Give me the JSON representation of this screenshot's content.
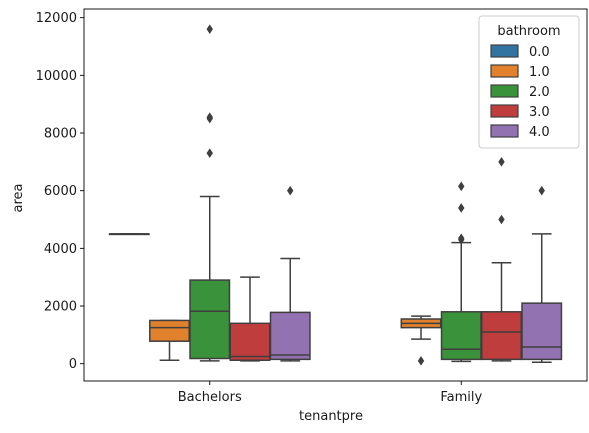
{
  "chart_data": {
    "type": "box",
    "xlabel": "tenantpre",
    "ylabel": "area",
    "ylim": [
      -600,
      12300
    ],
    "yticks": [
      0,
      2000,
      4000,
      6000,
      8000,
      10000,
      12000
    ],
    "yticklabels": [
      "0",
      "2000",
      "4000",
      "6000",
      "8000",
      "10000",
      "12000"
    ],
    "categories": [
      "Bachelors",
      "Family"
    ],
    "legend": {
      "title": "bathroom",
      "placement": "top-right",
      "entries": [
        "0.0",
        "1.0",
        "2.0",
        "3.0",
        "4.0"
      ]
    },
    "series": [
      {
        "name": "0.0",
        "color": "#3274a1",
        "boxes": [
          {
            "category": "Bachelors",
            "q1": 4500,
            "median": 4500,
            "q3": 4500,
            "whisker_low": 4500,
            "whisker_high": 4500,
            "outliers": []
          },
          null
        ]
      },
      {
        "name": "1.0",
        "color": "#e1812c",
        "boxes": [
          {
            "category": "Bachelors",
            "q1": 780,
            "median": 1250,
            "q3": 1500,
            "whisker_low": 120,
            "whisker_high": 1500,
            "outliers": []
          },
          {
            "category": "Family",
            "q1": 1250,
            "median": 1400,
            "q3": 1550,
            "whisker_low": 850,
            "whisker_high": 1650,
            "outliers": [
              100
            ]
          }
        ]
      },
      {
        "name": "2.0",
        "color": "#3a923a",
        "boxes": [
          {
            "category": "Bachelors",
            "q1": 180,
            "median": 1820,
            "q3": 2900,
            "whisker_low": 100,
            "whisker_high": 5800,
            "outliers": [
              7300,
              8500,
              8550,
              11600
            ]
          },
          {
            "category": "Family",
            "q1": 150,
            "median": 500,
            "q3": 1800,
            "whisker_low": 80,
            "whisker_high": 4200,
            "outliers": [
              4300,
              4350,
              5400,
              6150
            ]
          }
        ]
      },
      {
        "name": "3.0",
        "color": "#c03d3e",
        "boxes": [
          {
            "category": "Bachelors",
            "q1": 120,
            "median": 250,
            "q3": 1400,
            "whisker_low": 100,
            "whisker_high": 3000,
            "outliers": []
          },
          {
            "category": "Family",
            "q1": 150,
            "median": 1100,
            "q3": 1800,
            "whisker_low": 100,
            "whisker_high": 3500,
            "outliers": [
              5000,
              7000
            ]
          }
        ]
      },
      {
        "name": "4.0",
        "color": "#9372b2",
        "boxes": [
          {
            "category": "Bachelors",
            "q1": 150,
            "median": 300,
            "q3": 1780,
            "whisker_low": 100,
            "whisker_high": 3650,
            "outliers": [
              6000
            ]
          },
          {
            "category": "Family",
            "q1": 150,
            "median": 580,
            "q3": 2100,
            "whisker_low": 50,
            "whisker_high": 4500,
            "outliers": [
              6000
            ]
          }
        ]
      }
    ]
  }
}
